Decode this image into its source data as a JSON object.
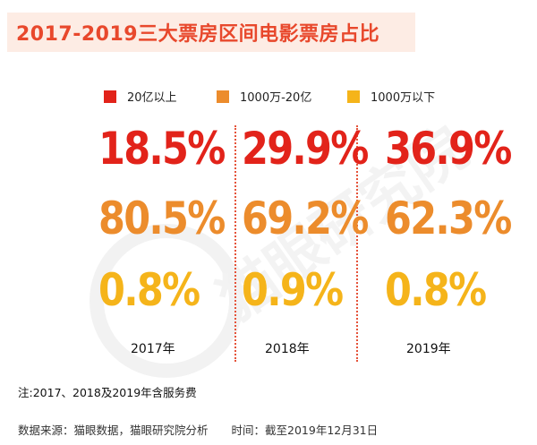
{
  "title": "2017-2019三大票房区间电影票房占比",
  "chart_data": {
    "type": "table",
    "title": "2017-2019三大票房区间电影票房占比",
    "categories": [
      "2017年",
      "2018年",
      "2019年"
    ],
    "series": [
      {
        "name": "20亿以上",
        "color": "#e2231a",
        "values": [
          "18.5%",
          "29.9%",
          "36.9%"
        ]
      },
      {
        "name": "1000万-20亿",
        "color": "#ec8c2c",
        "values": [
          "80.5%",
          "69.2%",
          "62.3%"
        ]
      },
      {
        "name": "1000万以下",
        "color": "#f5b41a",
        "values": [
          "0.8%",
          "0.9%",
          "0.8%"
        ]
      }
    ]
  },
  "note": "注:2017、2018及2019年含服务费",
  "source": "数据来源：猫眼数据，猫眼研究院分析",
  "time": "时间：截至2019年12月31日",
  "watermark": "猫眼研究院"
}
